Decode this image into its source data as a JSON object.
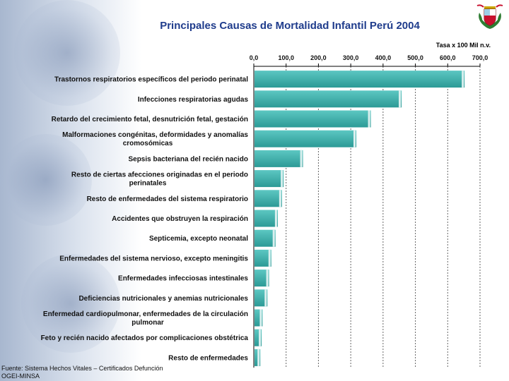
{
  "title": "Principales Causas de Mortalidad Infantil Perú 2004",
  "footnote": {
    "line1": "Fuente: Sistema Hechos Vitales – Certificados Defunción",
    "line2": "OGEI-MINSA"
  },
  "colors": {
    "bar": "#2c9a96",
    "bar_light": "#5cc7c2",
    "bar_edge": "#d9efee",
    "title": "#1f3c8c",
    "seal_red": "#c8102e"
  },
  "chart_data": {
    "type": "bar",
    "orientation": "horizontal",
    "title": "Principales Causas de Mortalidad Infantil Perú 2004",
    "xlabel": "Tasa x 100 Mil n.v.",
    "ylabel": "",
    "xlim": [
      0,
      700
    ],
    "xticks": [
      0,
      100,
      200,
      300,
      400,
      500,
      600,
      700
    ],
    "xtick_labels": [
      "0,0",
      "100,0",
      "200,0",
      "300,0",
      "400,0",
      "500,0",
      "600,0",
      "700,0"
    ],
    "grid": true,
    "categories": [
      [
        "Trastornos respiratorios específicos del periodo perinatal"
      ],
      [
        "Infecciones respiratorias agudas"
      ],
      [
        "Retardo del crecimiento fetal, desnutrición fetal, gestación"
      ],
      [
        "Malformaciones congénitas, deformidades y anomalías",
        "cromosómicas"
      ],
      [
        "Sepsis bacteriana del recién nacido"
      ],
      [
        "Resto de ciertas afecciones originadas en el periodo",
        "perinatales"
      ],
      [
        "Resto de enfermedades del sistema respiratorio"
      ],
      [
        "Accidentes que obstruyen la respiración"
      ],
      [
        "Septicemia, excepto neonatal"
      ],
      [
        "Enfermedades del sistema nervioso, excepto meningitis"
      ],
      [
        "Enfermedades infecciosas intestinales"
      ],
      [
        "Deficiencias nutricionales y anemias nutricionales"
      ],
      [
        "Enfermedad cardiopulmonar, enfermedades de la circulación",
        "pulmonar"
      ],
      [
        "Feto y recién nacido afectados por complicaciones obstétrica"
      ],
      [
        "Resto de enfermedades"
      ]
    ],
    "values": [
      650,
      455,
      360,
      315,
      150,
      90,
      85,
      72,
      65,
      52,
      45,
      40,
      25,
      22,
      18
    ]
  }
}
